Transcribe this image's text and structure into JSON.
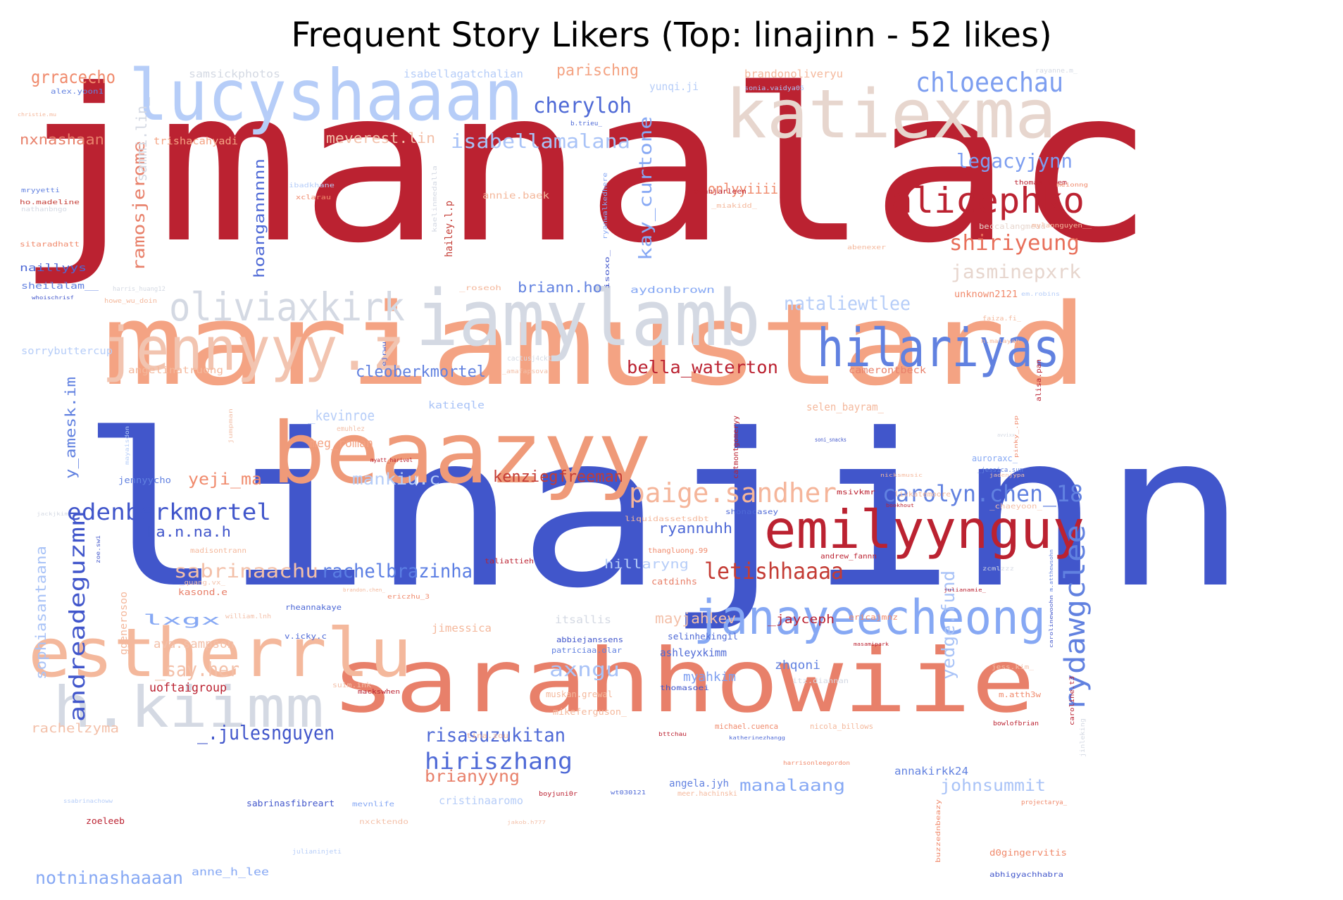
{
  "title": "Frequent Story Likers (Top: linajinn - 52 likes)",
  "top_user": "linajinn",
  "top_likes": 52,
  "colormap": [
    "#3b4cc0",
    "#dddcdc",
    "#b40426"
  ],
  "words": [
    {
      "text": "jmanalac"
    },
    {
      "text": "linajinn"
    },
    {
      "text": "mariamustard"
    },
    {
      "text": "sarahhowiie"
    },
    {
      "text": "beaazyy"
    },
    {
      "text": "katiexma"
    },
    {
      "text": "lucyshaaan"
    },
    {
      "text": "iamylamb"
    },
    {
      "text": "estherrlu"
    },
    {
      "text": "h.kiimm"
    },
    {
      "text": "jennyyy.z"
    },
    {
      "text": "emilyynguy"
    },
    {
      "text": "janayeecheong"
    },
    {
      "text": "hilariyas"
    },
    {
      "text": "oliviaxkirk"
    },
    {
      "text": "alicephko"
    },
    {
      "text": "chloeechau"
    },
    {
      "text": "rydawgclee"
    },
    {
      "text": "paige.sandher"
    },
    {
      "text": "cheryloh"
    },
    {
      "text": "edenberkmortel"
    },
    {
      "text": "letishhaaaa"
    },
    {
      "text": "carolyn.chen_18"
    },
    {
      "text": "shiriyeung"
    },
    {
      "text": "legacyjynn"
    },
    {
      "text": "isabellamalana"
    },
    {
      "text": "grracecho"
    },
    {
      "text": "nxnashaan"
    },
    {
      "text": "notninashaaaan"
    },
    {
      "text": "risasuzukitan"
    },
    {
      "text": "hiriszhang"
    },
    {
      "text": "sabrinaachu"
    },
    {
      "text": "rachelbrazinha"
    },
    {
      "text": "andreadeguzmn"
    },
    {
      "text": "_.julesnguyen"
    },
    {
      "text": "axngu"
    },
    {
      "text": "_say.her"
    },
    {
      "text": "bella_waterton"
    },
    {
      "text": "jasminepxrk"
    },
    {
      "text": "nataliewtlee"
    },
    {
      "text": "cleoberkmortel"
    },
    {
      "text": "kay_curtone"
    },
    {
      "text": "ramosjerome"
    },
    {
      "text": "hoangannnnn"
    },
    {
      "text": "yedge.fund"
    },
    {
      "text": "sophiasantaana"
    },
    {
      "text": "y_amesk.im"
    },
    {
      "text": "_kevinroe"
    },
    {
      "text": "yeji_ma"
    },
    {
      "text": "mankiu.c"
    },
    {
      "text": "kenziegfreeman"
    },
    {
      "text": "ha.n.na.h"
    },
    {
      "text": "ryannuhh"
    },
    {
      "text": "manalaang"
    },
    {
      "text": "johnsummit"
    },
    {
      "text": "brianyyng"
    },
    {
      "text": "mayjahkev"
    },
    {
      "text": "parischng"
    },
    {
      "text": "onlyyiiii"
    },
    {
      "text": "briann.ho"
    },
    {
      "text": "meverest.lin"
    },
    {
      "text": "sammi.lin_"
    },
    {
      "text": "hailey.l.p"
    },
    {
      "text": "meg_roman"
    },
    {
      "text": "lxgx"
    },
    {
      "text": "hillaryng"
    },
    {
      "text": "myahkim"
    },
    {
      "text": "ashleyxkimm"
    },
    {
      "text": "zhqoni"
    },
    {
      "text": "_jayceph"
    },
    {
      "text": "uoftaigroup"
    },
    {
      "text": "rachelzyma"
    },
    {
      "text": "anne_h_lee"
    },
    {
      "text": "ava.sampson"
    },
    {
      "text": "itsallis"
    },
    {
      "text": "jimessica"
    },
    {
      "text": "cristinaaromo"
    },
    {
      "text": "annakirkk24"
    },
    {
      "text": "samsickphotos"
    },
    {
      "text": "isabellagatchalian"
    },
    {
      "text": "brandonoliveryu"
    },
    {
      "text": "yunqi.ji"
    },
    {
      "text": "trishacahyadi"
    },
    {
      "text": "annie.baek"
    },
    {
      "text": "naillyys"
    },
    {
      "text": "sheilalam__"
    },
    {
      "text": "sorrybuttercup"
    },
    {
      "text": "angelinatruong"
    },
    {
      "text": "aydonbrown"
    },
    {
      "text": "unknown2121"
    },
    {
      "text": "camerontbeck"
    },
    {
      "text": "selen_bayram_"
    },
    {
      "text": "katieqle"
    },
    {
      "text": "jennyycho"
    },
    {
      "text": "auroraxc_"
    },
    {
      "text": "ggenerosoo"
    },
    {
      "text": "kasond.e"
    },
    {
      "text": "catdinhs"
    },
    {
      "text": "selinhekingil"
    },
    {
      "text": "mikeferguson_"
    },
    {
      "text": "muskan.grewal"
    },
    {
      "text": "angela.jyh"
    },
    {
      "text": "sabrinasfibreart"
    },
    {
      "text": "zoeleeb"
    },
    {
      "text": "d0gingervitis"
    },
    {
      "text": "abhigyachhabra"
    },
    {
      "text": "michael.cuenca"
    },
    {
      "text": "nicola_billows"
    },
    {
      "text": "sitaradhatt"
    },
    {
      "text": "alex.yoon1"
    },
    {
      "text": "ho.madeline"
    },
    {
      "text": "evanjarleen"
    },
    {
      "text": "thomas_flem"
    },
    {
      "text": "liquidassetsdbt"
    },
    {
      "text": "thangluong.99"
    },
    {
      "text": "andrew_fannn"
    },
    {
      "text": "taliattieh"
    },
    {
      "text": "madisontrann"
    },
    {
      "text": "msivkmr"
    },
    {
      "text": "shonacasey"
    },
    {
      "text": "catmontgomeryy"
    },
    {
      "text": "alisa.pan"
    },
    {
      "text": "abbiejanssens"
    },
    {
      "text": "patriciaa.olar"
    },
    {
      "text": "thomasoei"
    },
    {
      "text": "mackswhen"
    },
    {
      "text": "ericajmnz"
    },
    {
      "text": "rheannakaye"
    },
    {
      "text": "v.icky.c"
    },
    {
      "text": "suim.ink"
    },
    {
      "text": "itz.diannan"
    },
    {
      "text": "tina.zou"
    },
    {
      "text": "mevnlife"
    },
    {
      "text": "boyjuni0r"
    },
    {
      "text": "bowlofbrian"
    },
    {
      "text": "projectarya_"
    },
    {
      "text": "buzzednbeazy"
    },
    {
      "text": "m.atth3w"
    },
    {
      "text": "jess.kim_"
    },
    {
      "text": "caroline.t3"
    },
    {
      "text": "jinleking"
    },
    {
      "text": "beccalangmead"
    },
    {
      "text": "mylannguyen__"
    },
    {
      "text": "rayanne.m_"
    },
    {
      "text": "sonia.vaidya05"
    },
    {
      "text": "b.trieu_"
    },
    {
      "text": "meionng"
    },
    {
      "text": "_miakidd_"
    },
    {
      "text": "abenexer"
    },
    {
      "text": "faiza.fi_"
    },
    {
      "text": "em.robins"
    },
    {
      "text": "h.malayah"
    },
    {
      "text": "_roseoh"
    },
    {
      "text": "isoxo_"
    },
    {
      "text": "harris_huang12"
    },
    {
      "text": "howe_wu_doin"
    },
    {
      "text": "ibadkhane"
    },
    {
      "text": "xclarau"
    },
    {
      "text": "kaelinmedalla"
    },
    {
      "text": "ryanwalkedhere"
    },
    {
      "text": "mryyetti"
    },
    {
      "text": "nathanbngo"
    },
    {
      "text": "christie.mu"
    },
    {
      "text": "whoischrisf"
    },
    {
      "text": "cactusj4cktus"
    },
    {
      "text": "_amafapsova"
    },
    {
      "text": "emuhlez"
    },
    {
      "text": "ejrwu"
    },
    {
      "text": "mayaisdon"
    },
    {
      "text": "jumpman"
    },
    {
      "text": "nicksmusic"
    },
    {
      "text": "jadenjypa"
    },
    {
      "text": "_jessica.sun"
    },
    {
      "text": "soni_snacks"
    },
    {
      "text": "myatt_harivel"
    },
    {
      "text": "avvixx"
    },
    {
      "text": "pinky_.pp"
    },
    {
      "text": "bookhout"
    },
    {
      "text": "livkatemoore"
    },
    {
      "text": "_chaeyoon_"
    },
    {
      "text": "jackjkim"
    },
    {
      "text": "zoe.swi"
    },
    {
      "text": "_quang.vx_"
    },
    {
      "text": "brandon.chen_"
    },
    {
      "text": "ericzhu_3"
    },
    {
      "text": "julianamie_"
    },
    {
      "text": "zcmlzzz"
    },
    {
      "text": "william.lnh"
    },
    {
      "text": "masamipark"
    },
    {
      "text": "katherinezhangg"
    },
    {
      "text": "bttchau"
    },
    {
      "text": "harrisonleegordon"
    },
    {
      "text": "ssabrinachoww"
    },
    {
      "text": "nxcktendo"
    },
    {
      "text": "jakob.h777"
    },
    {
      "text": "wt030121"
    },
    {
      "text": "meer.hachinski"
    },
    {
      "text": "julianinjeti"
    },
    {
      "text": "m.atthewsohn"
    },
    {
      "text": "carolinewoohn"
    }
  ]
}
